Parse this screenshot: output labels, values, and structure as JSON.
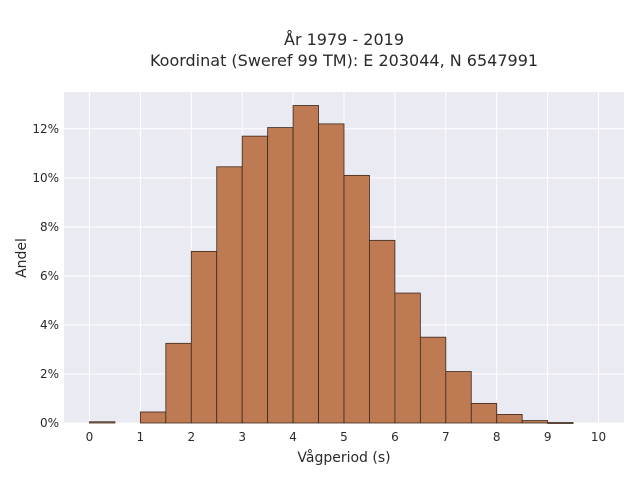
{
  "chart_data": {
    "type": "bar",
    "title_line1": "År 1979 - 2019",
    "title_line2": "Koordinat (Sweref 99 TM): E 203044, N 6547991",
    "xlabel": "Vågperiod (s)",
    "ylabel": "Andel",
    "xlim": [
      -0.5,
      10.5
    ],
    "ylim": [
      0,
      13.5
    ],
    "x_ticks": [
      0,
      1,
      2,
      3,
      4,
      5,
      6,
      7,
      8,
      9,
      10
    ],
    "y_ticks": [
      0,
      2,
      4,
      6,
      8,
      10,
      12
    ],
    "y_tick_suffix": "%",
    "bin_width": 0.5,
    "bins": [
      {
        "x0": 0.0,
        "value": 0.05
      },
      {
        "x0": 0.5,
        "value": 0.0
      },
      {
        "x0": 1.0,
        "value": 0.45
      },
      {
        "x0": 1.5,
        "value": 3.25
      },
      {
        "x0": 2.0,
        "value": 7.0
      },
      {
        "x0": 2.5,
        "value": 10.45
      },
      {
        "x0": 3.0,
        "value": 11.7
      },
      {
        "x0": 3.5,
        "value": 12.05
      },
      {
        "x0": 4.0,
        "value": 12.95
      },
      {
        "x0": 4.5,
        "value": 12.2
      },
      {
        "x0": 5.0,
        "value": 10.1
      },
      {
        "x0": 5.5,
        "value": 7.45
      },
      {
        "x0": 6.0,
        "value": 5.3
      },
      {
        "x0": 6.5,
        "value": 3.5
      },
      {
        "x0": 7.0,
        "value": 2.1
      },
      {
        "x0": 7.5,
        "value": 0.8
      },
      {
        "x0": 8.0,
        "value": 0.35
      },
      {
        "x0": 8.5,
        "value": 0.1
      },
      {
        "x0": 9.0,
        "value": 0.02
      }
    ],
    "grid": true,
    "colors": {
      "bar_fill": "#bd7a53",
      "bar_edge": "#3b2a1f",
      "plot_background": "#eaeaf2",
      "grid": "#ffffff"
    }
  }
}
